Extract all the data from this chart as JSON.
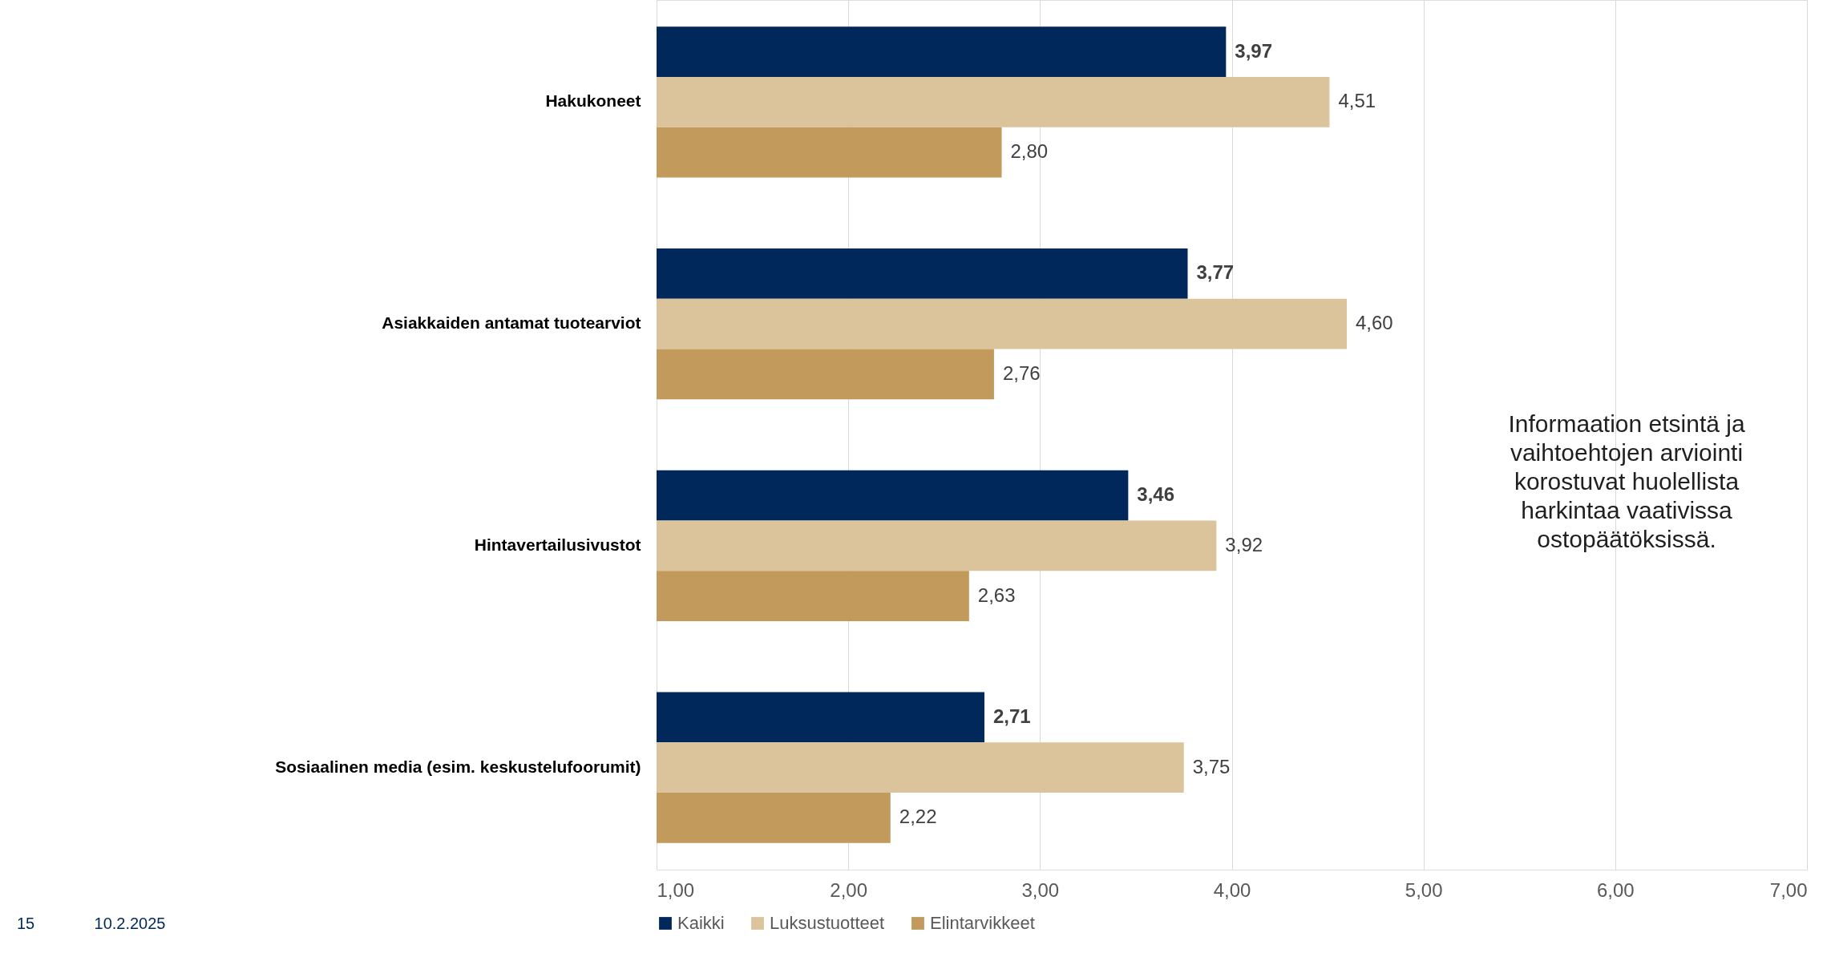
{
  "chart_data": {
    "type": "bar",
    "orientation": "horizontal",
    "categories": [
      "Hakukoneet",
      "Asiakkaiden antamat tuotearviot",
      "Hintavertailusivustot",
      "Sosiaalinen media (esim. keskustelufoorumit)"
    ],
    "series": [
      {
        "name": "Kaikki",
        "color": "#00285a",
        "values": [
          3.97,
          3.77,
          3.46,
          2.71
        ],
        "value_labels": [
          "3,97",
          "3,77",
          "3,46",
          "2,71"
        ]
      },
      {
        "name": "Luksustuotteet",
        "color": "#dbc49c",
        "values": [
          4.51,
          4.6,
          3.92,
          3.75
        ],
        "value_labels": [
          "4,51",
          "4,60",
          "3,92",
          "3,75"
        ]
      },
      {
        "name": "Elintarvikkeet",
        "color": "#c29a5c",
        "values": [
          2.8,
          2.76,
          2.63,
          2.22
        ],
        "value_labels": [
          "2,80",
          "2,76",
          "2,63",
          "2,22"
        ]
      }
    ],
    "xlim": [
      1,
      7
    ],
    "xticks": [
      {
        "value": 1,
        "label": "1,00"
      },
      {
        "value": 2,
        "label": "2,00"
      },
      {
        "value": 3,
        "label": "3,00"
      },
      {
        "value": 4,
        "label": "4,00"
      },
      {
        "value": 5,
        "label": "5,00"
      },
      {
        "value": 6,
        "label": "6,00"
      },
      {
        "value": 7,
        "label": "7,00"
      }
    ],
    "grid": "x",
    "legend": "bottom",
    "annotations": [
      "Informaation etsintä ja vaihtoehtojen arviointi korostuvat huolellista harkintaa vaativissa ostopäätöksissä.",
      "15",
      "10.2.2025"
    ]
  }
}
